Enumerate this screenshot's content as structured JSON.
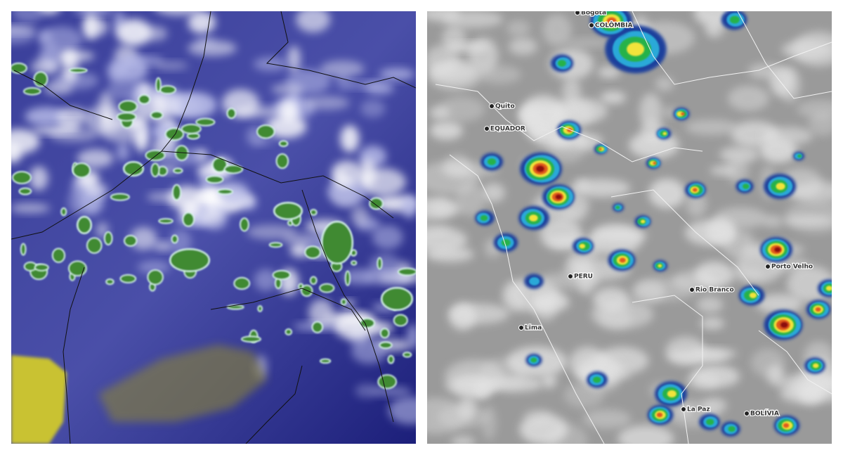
{
  "map_labels": [
    "Bogotá",
    "COLÔMBIA",
    "Quito",
    "EQUADOR",
    "PERU",
    "Lima",
    "Porto Velho",
    "Rio Branco",
    "La Paz",
    "BOLÍVIA"
  ]
}
